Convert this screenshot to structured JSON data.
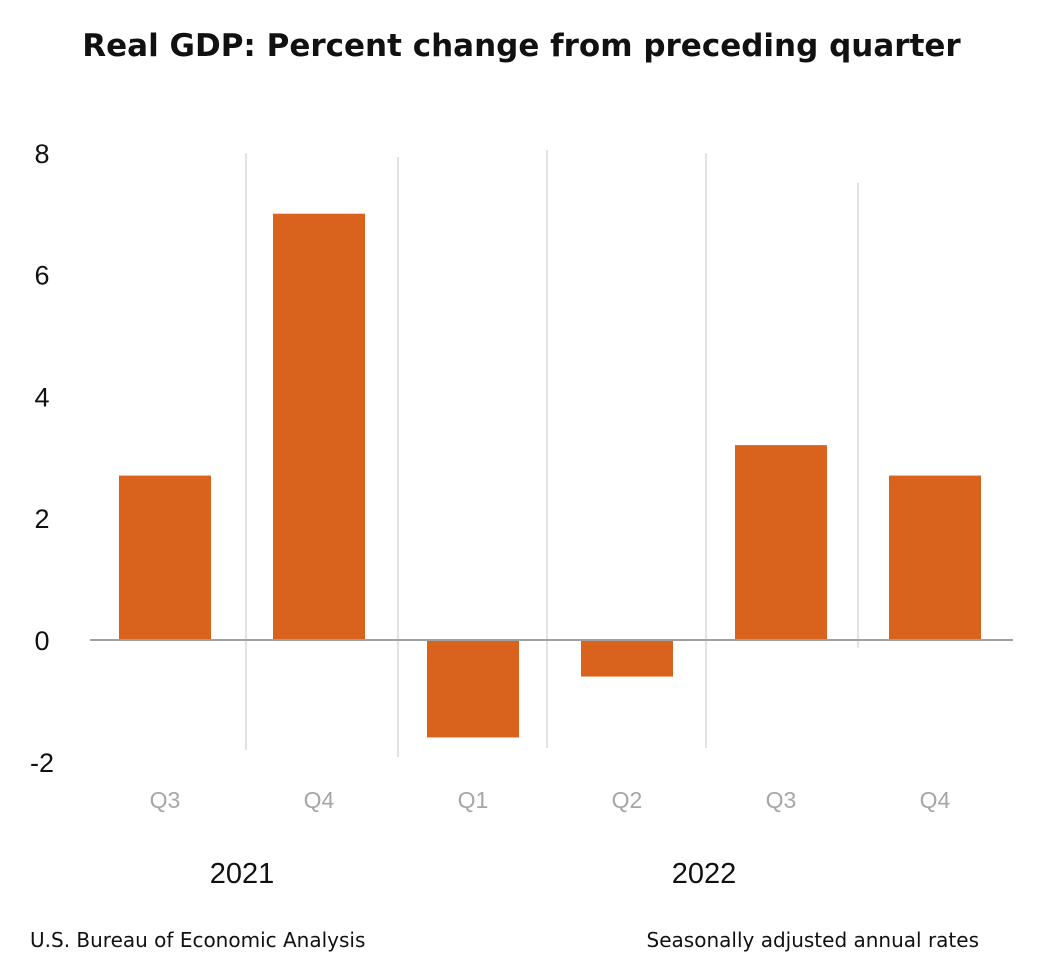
{
  "chart_data": {
    "type": "bar",
    "title": "Real GDP:  Percent change from preceding quarter",
    "categories": [
      "Q3",
      "Q4",
      "Q1",
      "Q2",
      "Q3",
      "Q4"
    ],
    "groups": [
      {
        "label": "2021",
        "categories": [
          0,
          1
        ]
      },
      {
        "label": "2022",
        "categories": [
          2,
          3,
          4,
          5
        ]
      }
    ],
    "values": [
      2.7,
      7.0,
      -1.6,
      -0.6,
      3.2,
      2.7
    ],
    "ylim": [
      -2,
      8
    ],
    "yticks": [
      8,
      6,
      4,
      2,
      0,
      -2
    ],
    "xlabel": "",
    "ylabel": "",
    "bar_color": "#D9621C",
    "grid": false
  },
  "footer": {
    "source": "U.S. Bureau of Economic Analysis",
    "note": "Seasonally adjusted annual rates"
  }
}
